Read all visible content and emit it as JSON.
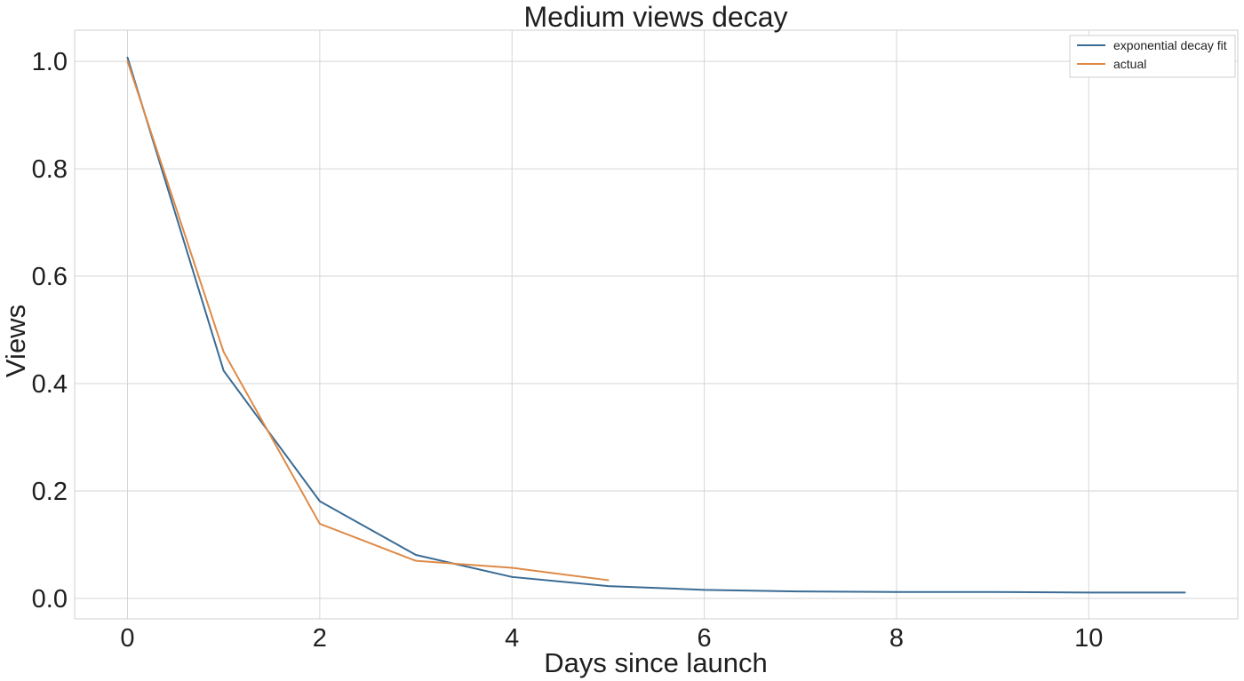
{
  "chart_data": {
    "type": "line",
    "title": "Medium views decay",
    "xlabel": "Days since launch",
    "ylabel": "Views",
    "xlim": [
      -0.55,
      11.55
    ],
    "ylim": [
      -0.038,
      1.058
    ],
    "xticks": [
      0,
      2,
      4,
      6,
      8,
      10
    ],
    "yticks": [
      0.0,
      0.2,
      0.4,
      0.6,
      0.8,
      1.0
    ],
    "xtick_labels": [
      "0",
      "2",
      "4",
      "6",
      "8",
      "10"
    ],
    "ytick_labels": [
      "0.0",
      "0.2",
      "0.4",
      "0.6",
      "0.8",
      "1.0"
    ],
    "grid": true,
    "legend_position": "top-right",
    "series": [
      {
        "name": "exponential decay fit",
        "color": "#3a6b94",
        "x": [
          0,
          1,
          2,
          3,
          4,
          5,
          6,
          7,
          8,
          9,
          10,
          11
        ],
        "y": [
          1.007,
          0.424,
          0.181,
          0.081,
          0.04,
          0.023,
          0.016,
          0.013,
          0.012,
          0.012,
          0.011,
          0.011
        ]
      },
      {
        "name": "actual",
        "color": "#de8a47",
        "x": [
          0,
          1,
          2,
          3,
          4,
          5
        ],
        "y": [
          1.0,
          0.459,
          0.139,
          0.07,
          0.057,
          0.034
        ]
      }
    ]
  },
  "colors": {
    "grid": "#d6d6d6",
    "frame": "#cfcfcf",
    "text": "#1f1f1f",
    "background": "#ffffff"
  }
}
